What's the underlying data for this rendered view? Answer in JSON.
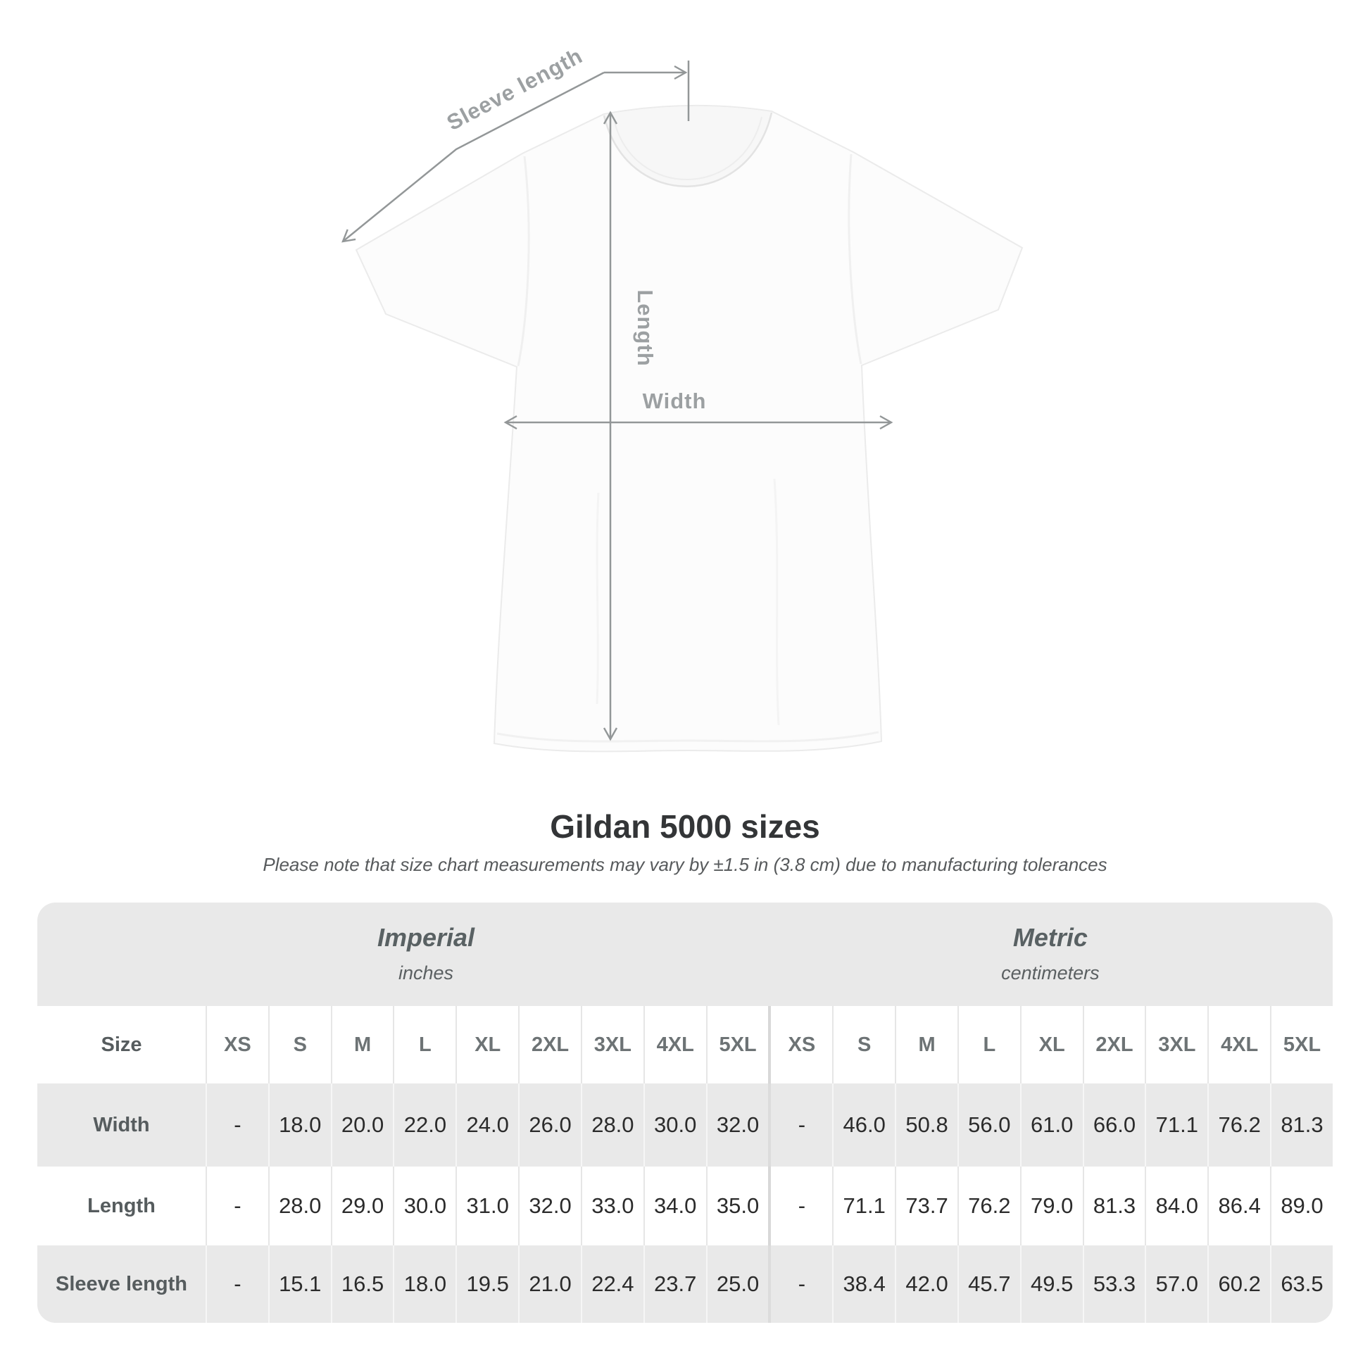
{
  "diagram": {
    "sleeve_length_label": "Sleeve length",
    "length_label": "Length",
    "width_label": "Width"
  },
  "header": {
    "title": "Gildan 5000 sizes",
    "subtitle": "Please note that size chart measurements may vary by ±1.5 in (3.8 cm) due to manufacturing tolerances"
  },
  "table": {
    "groups": [
      {
        "name": "Imperial",
        "unit": "inches"
      },
      {
        "name": "Metric",
        "unit": "centimeters"
      }
    ],
    "size_column_label": "Size",
    "sizes": [
      "XS",
      "S",
      "M",
      "L",
      "XL",
      "2XL",
      "3XL",
      "4XL",
      "5XL"
    ],
    "rows": [
      {
        "label": "Width",
        "imperial": [
          "-",
          "18.0",
          "20.0",
          "22.0",
          "24.0",
          "26.0",
          "28.0",
          "30.0",
          "32.0"
        ],
        "metric": [
          "-",
          "46.0",
          "50.8",
          "56.0",
          "61.0",
          "66.0",
          "71.1",
          "76.2",
          "81.3"
        ]
      },
      {
        "label": "Length",
        "imperial": [
          "-",
          "28.0",
          "29.0",
          "30.0",
          "31.0",
          "32.0",
          "33.0",
          "34.0",
          "35.0"
        ],
        "metric": [
          "-",
          "71.1",
          "73.7",
          "76.2",
          "79.0",
          "81.3",
          "84.0",
          "86.4",
          "89.0"
        ]
      },
      {
        "label": "Sleeve length",
        "imperial": [
          "-",
          "15.1",
          "16.5",
          "18.0",
          "19.5",
          "21.0",
          "22.4",
          "23.7",
          "25.0"
        ],
        "metric": [
          "-",
          "38.4",
          "42.0",
          "45.7",
          "49.5",
          "53.3",
          "57.0",
          "60.2",
          "63.5"
        ]
      }
    ]
  },
  "chart_data": {
    "type": "table",
    "title": "Gildan 5000 sizes",
    "note": "Measurements may vary by ±1.5 in (3.8 cm) due to manufacturing tolerances",
    "column_groups": [
      "Imperial (inches)",
      "Metric (centimeters)"
    ],
    "sizes": [
      "XS",
      "S",
      "M",
      "L",
      "XL",
      "2XL",
      "3XL",
      "4XL",
      "5XL"
    ],
    "imperial_inches": {
      "Width": [
        null,
        18.0,
        20.0,
        22.0,
        24.0,
        26.0,
        28.0,
        30.0,
        32.0
      ],
      "Length": [
        null,
        28.0,
        29.0,
        30.0,
        31.0,
        32.0,
        33.0,
        34.0,
        35.0
      ],
      "Sleeve length": [
        null,
        15.1,
        16.5,
        18.0,
        19.5,
        21.0,
        22.4,
        23.7,
        25.0
      ]
    },
    "metric_centimeters": {
      "Width": [
        null,
        46.0,
        50.8,
        56.0,
        61.0,
        66.0,
        71.1,
        76.2,
        81.3
      ],
      "Length": [
        null,
        71.1,
        73.7,
        76.2,
        79.0,
        81.3,
        84.0,
        86.4,
        89.0
      ],
      "Sleeve length": [
        null,
        38.4,
        42.0,
        45.7,
        49.5,
        53.3,
        57.0,
        60.2,
        63.5
      ]
    }
  },
  "colors": {
    "arrow_gray": "#939798",
    "label_gray": "#9ca0a2",
    "title_text": "#333537",
    "subtitle_text": "#575a5c",
    "table_background": "#e9e9e9",
    "group_heading_text": "#596163",
    "cell_text": "#2b2b2b",
    "shirt_fill": "#fcfcfc"
  }
}
